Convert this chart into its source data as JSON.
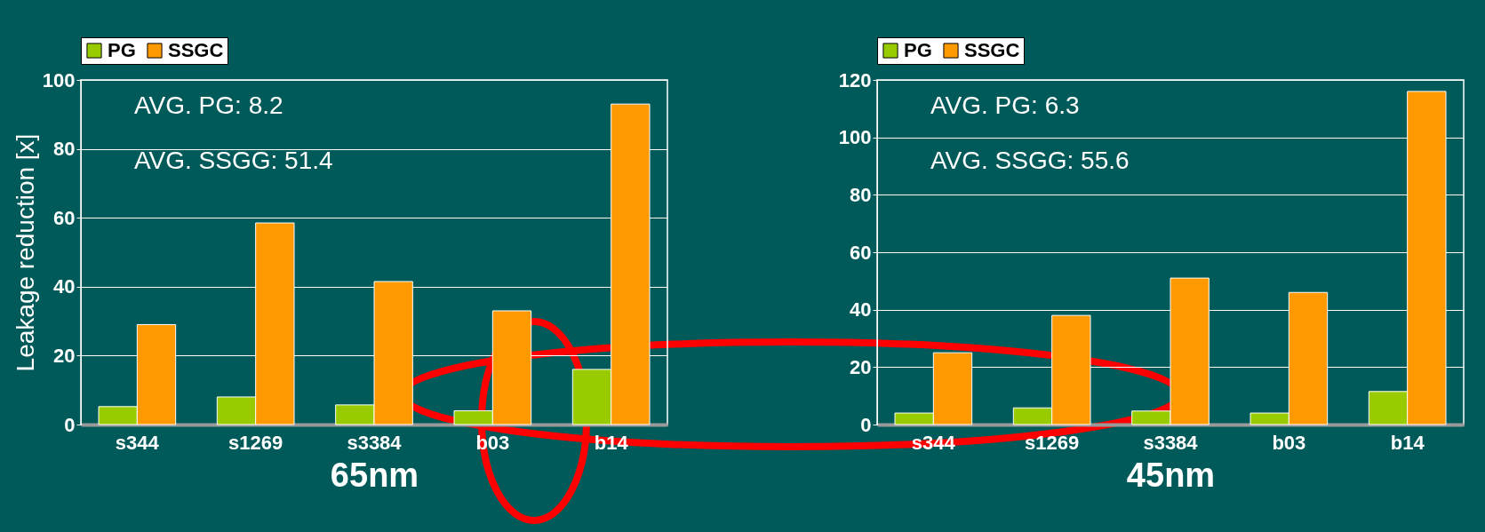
{
  "chart_data": [
    {
      "type": "bar",
      "xlabel": "65nm",
      "ylabel": "Leakage reduction [x]",
      "categories": [
        "s344",
        "s1269",
        "s3384",
        "b03",
        "b14"
      ],
      "series": [
        {
          "name": "PG",
          "color": "#99cc00",
          "values": [
            5.2,
            8,
            5.7,
            4,
            16
          ]
        },
        {
          "name": "SSGC",
          "color": "#ff9900",
          "values": [
            29,
            58.5,
            41.5,
            33,
            93
          ]
        }
      ],
      "ylim": [
        0,
        100
      ],
      "yticks": [
        0,
        20,
        40,
        60,
        80,
        100
      ],
      "grid": "y",
      "legend": "top",
      "annotations": [
        "AVG. PG: 8.2",
        "AVG. SSGG: 51.4"
      ]
    },
    {
      "type": "bar",
      "xlabel": "45nm",
      "categories": [
        "s344",
        "s1269",
        "s3384",
        "b03",
        "b14"
      ],
      "series": [
        {
          "name": "PG",
          "color": "#99cc00",
          "values": [
            4,
            5.8,
            4.7,
            4,
            11.5
          ]
        },
        {
          "name": "SSGC",
          "color": "#ff9900",
          "values": [
            25,
            38,
            51,
            46,
            116
          ]
        }
      ],
      "ylim": [
        0,
        120
      ],
      "yticks": [
        0,
        20,
        40,
        60,
        80,
        100,
        120
      ],
      "grid": "y",
      "legend": "top",
      "annotations": [
        "AVG. PG: 6.3",
        "AVG. SSGG: 55.6"
      ]
    }
  ]
}
